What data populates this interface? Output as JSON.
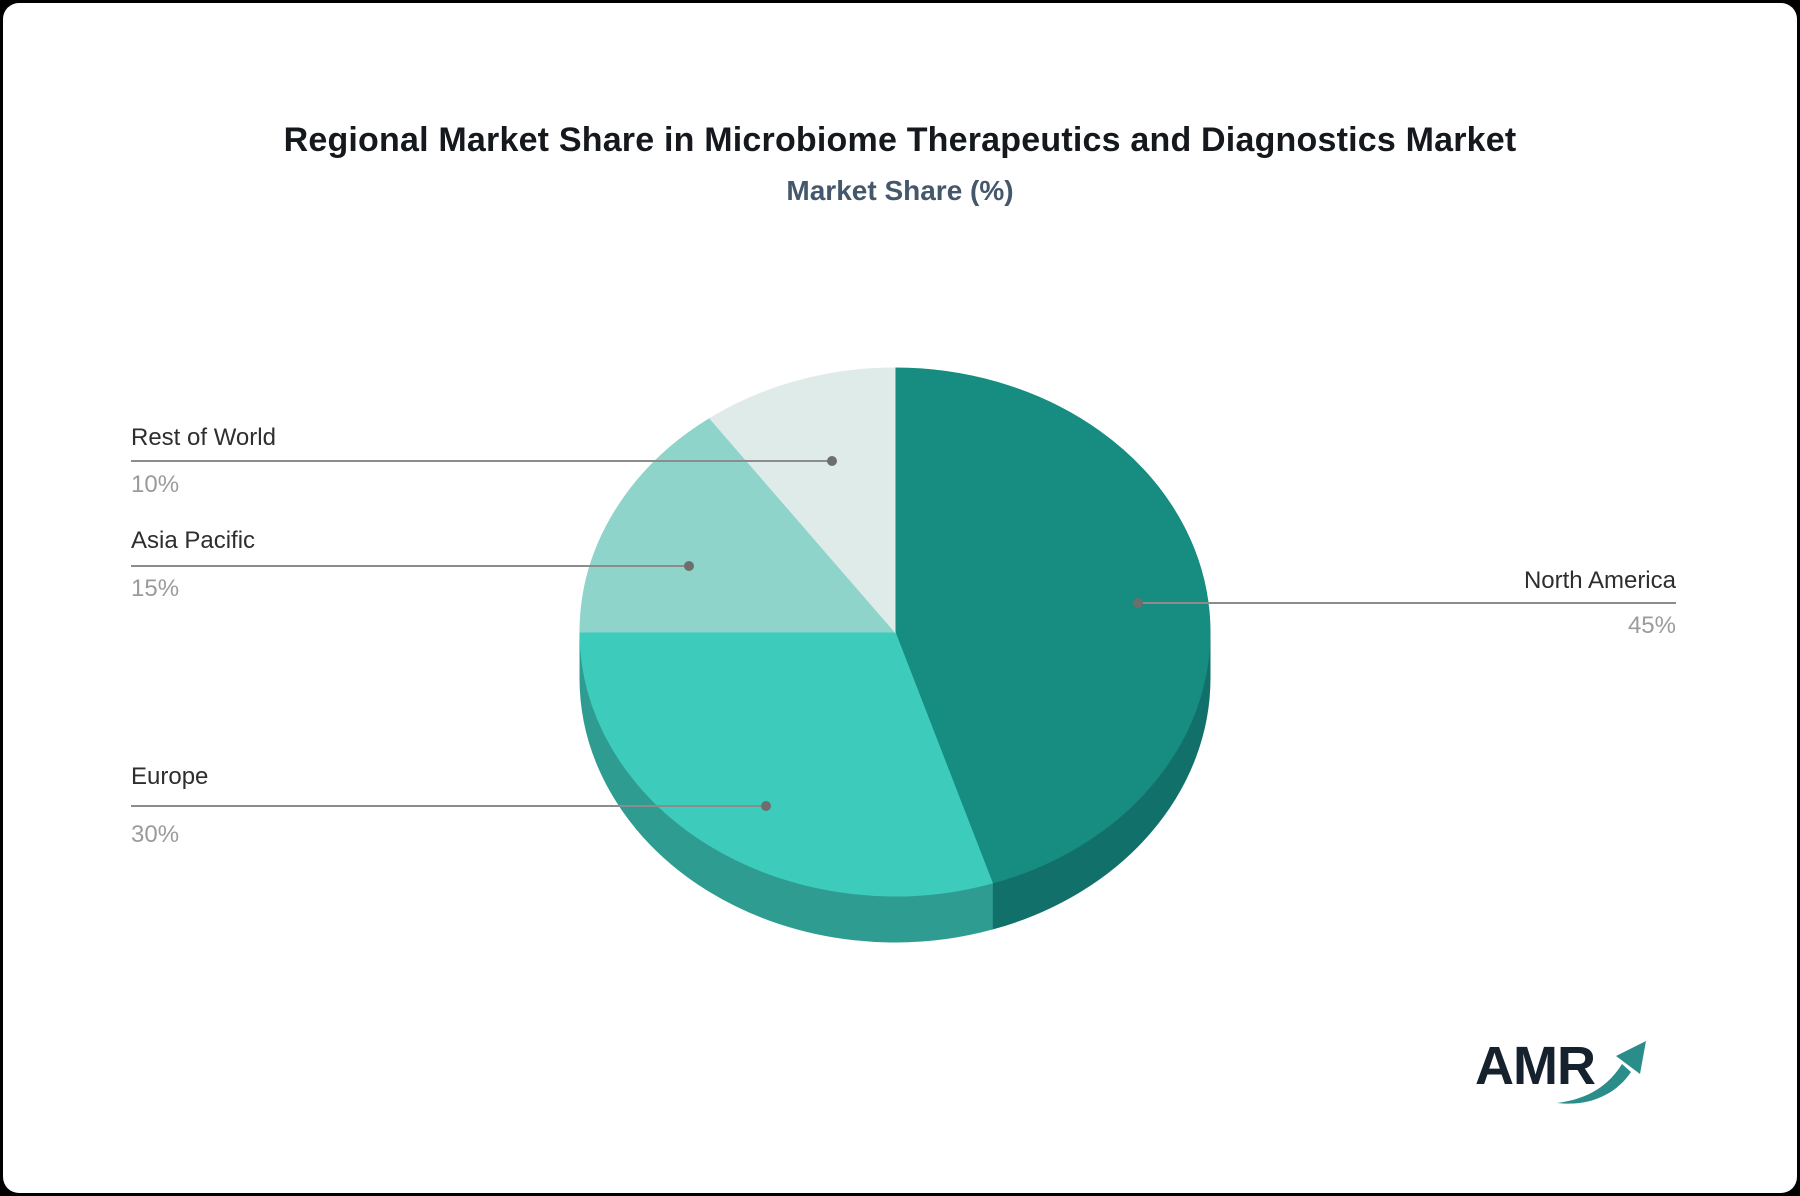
{
  "page": {
    "title": "Regional Market Share in Microbiome Therapeutics and Diagnostics Market",
    "subtitle": "Market Share (%)"
  },
  "chart_data": {
    "type": "pie",
    "title": "Regional Market Share in Microbiome Therapeutics and Diagnostics Market",
    "subtitle": "Market Share (%)",
    "unit": "percent",
    "start_angle_deg": 0,
    "direction": "clockwise",
    "style": "3d-pie",
    "legend_position": "callout-labels",
    "slices": [
      {
        "label": "North America",
        "value": 45,
        "value_label": "45%",
        "color": "#178c81",
        "side_color": "#11716a"
      },
      {
        "label": "Europe",
        "value": 30,
        "value_label": "30%",
        "color": "#3dcbbc",
        "side_color": "#2e9c90"
      },
      {
        "label": "Asia Pacific",
        "value": 15,
        "value_label": "15%",
        "color": "#8fd4cb",
        "side_color": "#79bdb4"
      },
      {
        "label": "Rest of World",
        "value": 10,
        "value_label": "10%",
        "color": "#deebe8",
        "side_color": "#c4d8d4"
      }
    ],
    "callout_line_color": "#8c8c8c",
    "callout_dot_color": "#6e6e6e"
  },
  "logo": {
    "text": "AMR",
    "arrow_color": "#2a8d89"
  }
}
